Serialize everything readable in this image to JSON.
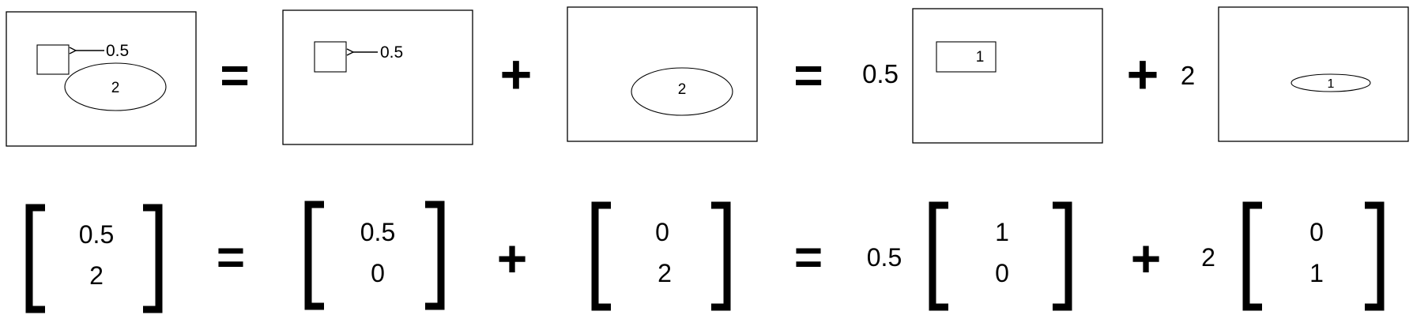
{
  "pictures": [
    {
      "square_value": "0.5",
      "ellipse_value": "2"
    },
    {
      "square_value": "0.5"
    },
    {
      "ellipse_value": "2"
    },
    {
      "coefficient": "0.5",
      "rect_value": "1"
    },
    {
      "coefficient": "2",
      "ellipse_value": "1"
    }
  ],
  "vectors": [
    {
      "top": "0.5",
      "bottom": "2"
    },
    {
      "top": "0.5",
      "bottom": "0"
    },
    {
      "top": "0",
      "bottom": "2"
    },
    {
      "coefficient": "0.5",
      "top": "1",
      "bottom": "0"
    },
    {
      "coefficient": "2",
      "top": "0",
      "bottom": "1"
    }
  ],
  "operators": {
    "equals": "=",
    "plus": "+"
  },
  "colors": {
    "ink": "#000000",
    "background": "#ffffff"
  }
}
